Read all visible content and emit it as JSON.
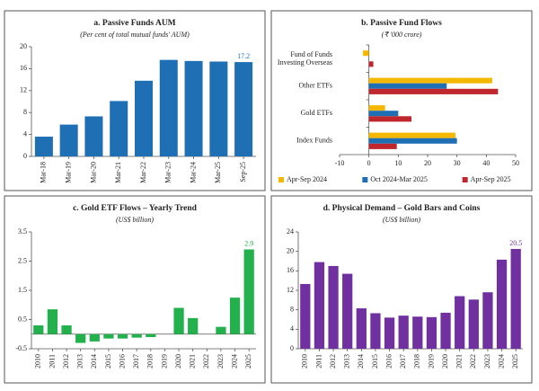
{
  "chart_data": [
    {
      "type": "bar",
      "title": "a. Passive Funds AUM",
      "subtitle": "(Per cent of total mutual funds' AUM)",
      "categories": [
        "Mar-18",
        "Mar-19",
        "Mar-20",
        "Mar-21",
        "Mar-22",
        "Mar-23",
        "Mar-24",
        "Mar-25",
        "Sep-25"
      ],
      "values": [
        3.6,
        5.8,
        7.3,
        10.1,
        13.8,
        17.6,
        17.4,
        17.3,
        17.2
      ],
      "color": "#1f6fb5",
      "label_last": true,
      "rotate_labels": true,
      "ylim": [
        0,
        20
      ],
      "yticks": [
        0,
        4,
        8,
        12,
        16,
        20
      ]
    },
    {
      "type": "bar",
      "orientation": "horizontal",
      "title": "b. Passive Fund Flows",
      "subtitle": "(₹ '000 crore)",
      "categories": [
        "Fund of Funds\nInvesting Overseas",
        "Other ETFs",
        "Gold ETFs",
        "Index Funds"
      ],
      "series": [
        {
          "name": "Apr-Sep 2024",
          "color": "#f5b800",
          "values": [
            -2,
            42,
            5.5,
            29.5
          ]
        },
        {
          "name": "Oct 2024-Mar 2025",
          "color": "#1f6fb5",
          "values": [
            0,
            26.5,
            10,
            30
          ]
        },
        {
          "name": "Apr-Sep 2025",
          "color": "#c0272d",
          "values": [
            1.5,
            44,
            14.5,
            9.5
          ]
        }
      ],
      "xlim": [
        -10,
        50
      ],
      "xticks": [
        -10,
        0,
        10,
        20,
        30,
        40,
        50
      ],
      "legend": "bottom"
    },
    {
      "type": "bar",
      "title": "c. Gold ETF Flows – Yearly Trend",
      "subtitle": "(US$ billion)",
      "categories": [
        "2010",
        "2011",
        "2012",
        "2013",
        "2014",
        "2015",
        "2016",
        "2017",
        "2018",
        "2019",
        "2020",
        "2021",
        "2022",
        "2023",
        "2024",
        "2025"
      ],
      "values": [
        0.3,
        0.85,
        0.3,
        -0.3,
        -0.25,
        -0.15,
        -0.15,
        -0.12,
        -0.1,
        0,
        0.9,
        0.55,
        0,
        0.25,
        1.25,
        2.9
      ],
      "color": "#22b14c",
      "label_last": true,
      "rotate_labels": true,
      "ylim": [
        -0.5,
        3.5
      ],
      "yticks": [
        -0.5,
        0.5,
        1.5,
        2.5,
        3.5
      ]
    },
    {
      "type": "bar",
      "title": "d. Physical Demand – Gold Bars and Coins",
      "subtitle": "(US$ billion)",
      "categories": [
        "2010",
        "2011",
        "2012",
        "2013",
        "2014",
        "2015",
        "2016",
        "2017",
        "2018",
        "2019",
        "2020",
        "2021",
        "2022",
        "2023",
        "2024",
        "2025"
      ],
      "values": [
        13.3,
        17.8,
        17,
        15.4,
        8.3,
        7.3,
        6.4,
        6.8,
        6.6,
        6.5,
        7.4,
        10.8,
        10.1,
        11.6,
        18.3,
        20.5
      ],
      "color": "#7030a0",
      "label_last": true,
      "rotate_labels": true,
      "ylim": [
        0,
        24
      ],
      "yticks": [
        0,
        4,
        8,
        12,
        16,
        20,
        24
      ]
    }
  ]
}
